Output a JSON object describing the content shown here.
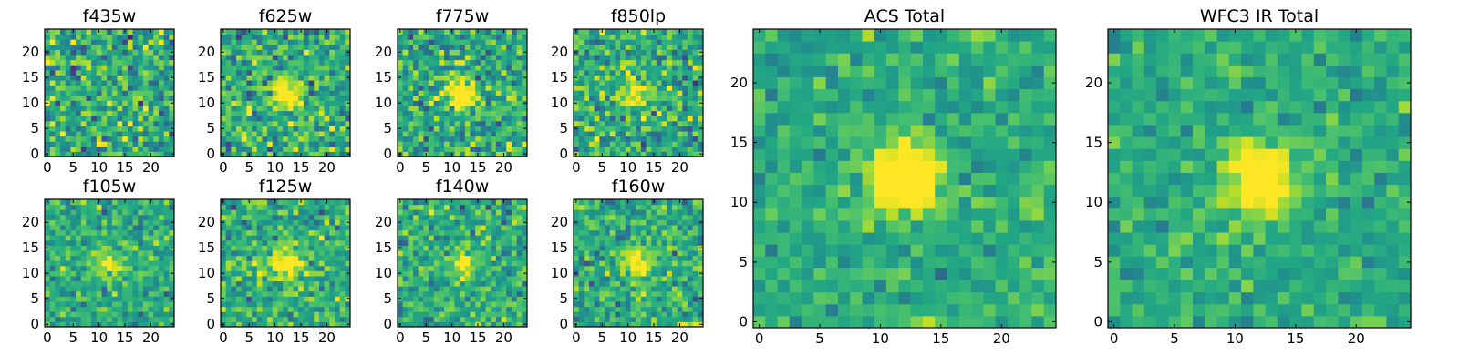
{
  "chart_data": [
    {
      "type": "heatmap",
      "title": "f435w",
      "xlim": [
        0,
        24
      ],
      "ylim": [
        0,
        24
      ],
      "xticks": [
        0,
        5,
        10,
        15,
        20
      ],
      "yticks": [
        0,
        5,
        10,
        15,
        20
      ],
      "colormap": "viridis",
      "source_contrast": 0.1,
      "noise": 1.0,
      "seed": 11
    },
    {
      "type": "heatmap",
      "title": "f625w",
      "xlim": [
        0,
        24
      ],
      "ylim": [
        0,
        24
      ],
      "xticks": [
        0,
        5,
        10,
        15,
        20
      ],
      "yticks": [
        0,
        5,
        10,
        15,
        20
      ],
      "colormap": "viridis",
      "source_contrast": 0.55,
      "noise": 0.9,
      "seed": 23
    },
    {
      "type": "heatmap",
      "title": "f775w",
      "xlim": [
        0,
        24
      ],
      "ylim": [
        0,
        24
      ],
      "xticks": [
        0,
        5,
        10,
        15,
        20
      ],
      "yticks": [
        0,
        5,
        10,
        15,
        20
      ],
      "colormap": "viridis",
      "source_contrast": 0.55,
      "noise": 0.9,
      "seed": 37
    },
    {
      "type": "heatmap",
      "title": "f850lp",
      "xlim": [
        0,
        24
      ],
      "ylim": [
        0,
        24
      ],
      "xticks": [
        0,
        5,
        10,
        15,
        20
      ],
      "yticks": [
        0,
        5,
        10,
        15,
        20
      ],
      "colormap": "viridis",
      "source_contrast": 0.45,
      "noise": 0.95,
      "seed": 41
    },
    {
      "type": "heatmap",
      "title": "f105w",
      "xlim": [
        0,
        24
      ],
      "ylim": [
        0,
        24
      ],
      "xticks": [
        0,
        5,
        10,
        15,
        20
      ],
      "yticks": [
        0,
        5,
        10,
        15,
        20
      ],
      "colormap": "viridis",
      "source_contrast": 0.35,
      "noise": 0.7,
      "seed": 53
    },
    {
      "type": "heatmap",
      "title": "f125w",
      "xlim": [
        0,
        24
      ],
      "ylim": [
        0,
        24
      ],
      "xticks": [
        0,
        5,
        10,
        15,
        20
      ],
      "yticks": [
        0,
        5,
        10,
        15,
        20
      ],
      "colormap": "viridis",
      "source_contrast": 0.5,
      "noise": 0.75,
      "seed": 67
    },
    {
      "type": "heatmap",
      "title": "f140w",
      "xlim": [
        0,
        24
      ],
      "ylim": [
        0,
        24
      ],
      "xticks": [
        0,
        5,
        10,
        15,
        20
      ],
      "yticks": [
        0,
        5,
        10,
        15,
        20
      ],
      "colormap": "viridis",
      "source_contrast": 0.4,
      "noise": 0.8,
      "seed": 71
    },
    {
      "type": "heatmap",
      "title": "f160w",
      "xlim": [
        0,
        24
      ],
      "ylim": [
        0,
        24
      ],
      "xticks": [
        0,
        5,
        10,
        15,
        20
      ],
      "yticks": [
        0,
        5,
        10,
        15,
        20
      ],
      "colormap": "viridis",
      "source_contrast": 0.5,
      "noise": 0.8,
      "seed": 83
    },
    {
      "type": "heatmap",
      "title": "ACS Total",
      "xlim": [
        0,
        24
      ],
      "ylim": [
        0,
        24
      ],
      "xticks": [
        0,
        5,
        10,
        15,
        20
      ],
      "yticks": [
        0,
        5,
        10,
        15,
        20
      ],
      "colormap": "viridis",
      "source_contrast": 0.75,
      "noise": 0.55,
      "seed": 97
    },
    {
      "type": "heatmap",
      "title": "WFC3 IR Total",
      "xlim": [
        0,
        24
      ],
      "ylim": [
        0,
        24
      ],
      "xticks": [
        0,
        5,
        10,
        15,
        20
      ],
      "yticks": [
        0,
        5,
        10,
        15,
        20
      ],
      "colormap": "viridis",
      "source_contrast": 0.7,
      "noise": 0.5,
      "seed": 101
    }
  ],
  "source_center": {
    "x": 12,
    "y": 12
  },
  "grid_size": 25
}
